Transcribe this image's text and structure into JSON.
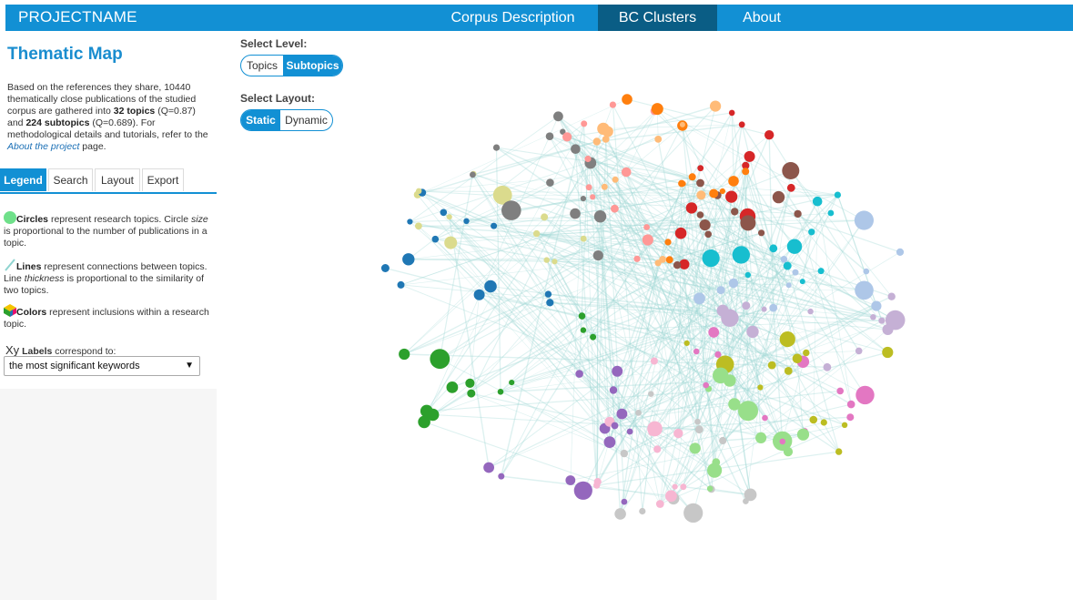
{
  "header": {
    "brand": "PROJECTNAME",
    "nav": [
      {
        "label": "Corpus Description",
        "active": false
      },
      {
        "label": "BC Clusters",
        "active": true
      },
      {
        "label": "About",
        "active": false
      }
    ]
  },
  "sidebar": {
    "title": "Thematic Map",
    "description": {
      "part1": "Based on the references they share, 10440 thematically close publications of the studied corpus are gathered into ",
      "topics_count": "32 topics",
      "part2": " (Q=0.87) and ",
      "subtopics_count": "224 subtopics",
      "part3": " (Q=0.689). For methodological details and tutorials, refer to the ",
      "link": "About the project",
      "part4": " page."
    },
    "tabs": [
      {
        "label": "Legend",
        "active": true
      },
      {
        "label": "Search",
        "active": false
      },
      {
        "label": "Layout",
        "active": false
      },
      {
        "label": "Export",
        "active": false
      }
    ],
    "legend": {
      "circles_bold": "Circles",
      "circles_text": " represent research topics. Circle ",
      "circles_em": "size",
      "circles_text2": " is proportional to the number of publications in a topic.",
      "lines_bold": "Lines",
      "lines_text": " represent connections between topics. Line ",
      "lines_em": "thickness",
      "lines_text2": " is proportional to the similarity of two topics.",
      "colors_bold": "Colors",
      "colors_text": " represent inclusions within a research topic.",
      "labels_icon": "Xy",
      "labels_bold": "Labels",
      "labels_text": " correspond to:"
    },
    "labels_select": {
      "value": "the most significant keywords"
    }
  },
  "controls": {
    "level_label": "Select Level:",
    "level_options": [
      "Topics",
      "Subtopics"
    ],
    "level_selected": "Subtopics",
    "layout_label": "Select Layout:",
    "layout_options": [
      "Static",
      "Dynamic"
    ],
    "layout_selected": "Static"
  },
  "colors": {
    "accent": "#1290d4",
    "accent_dark": "#0a5d85",
    "edge": "#9fd6d3"
  },
  "graph": {
    "node_count": 224
  }
}
